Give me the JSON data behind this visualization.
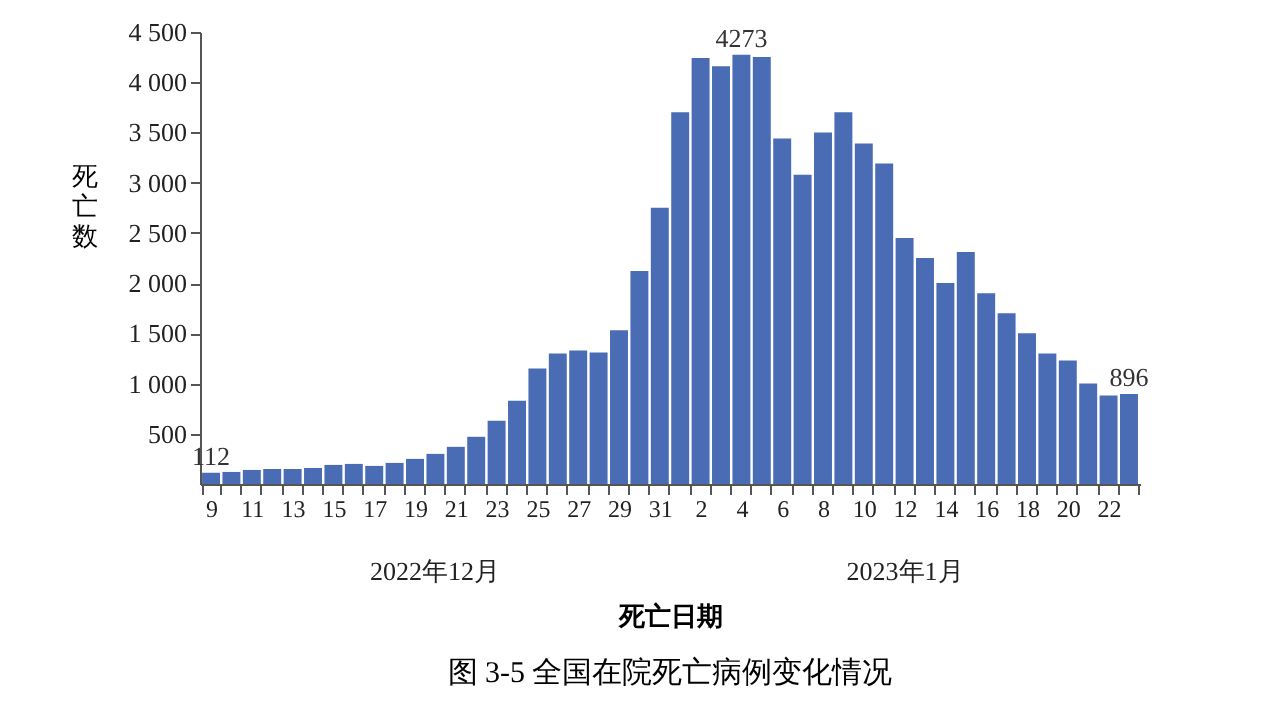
{
  "chart_data": {
    "type": "bar",
    "title": "图 3-5 全国在院死亡病例变化情况",
    "xlabel": "死亡日期",
    "ylabel": "死亡数",
    "categories": [
      "9",
      null,
      "11",
      null,
      "13",
      null,
      "15",
      null,
      "17",
      null,
      "19",
      null,
      "21",
      null,
      "23",
      null,
      "25",
      null,
      "27",
      null,
      "29",
      null,
      "31",
      null,
      "2",
      null,
      "4",
      null,
      "6",
      null,
      "8",
      null,
      "10",
      null,
      "12",
      null,
      "14",
      null,
      "16",
      null,
      "18",
      null,
      "20",
      null,
      "22",
      null
    ],
    "values": [
      112,
      120,
      140,
      150,
      150,
      160,
      190,
      200,
      180,
      210,
      250,
      300,
      370,
      470,
      630,
      830,
      1150,
      1300,
      1330,
      1310,
      1530,
      2120,
      2750,
      3700,
      4240,
      4160,
      4273,
      4250,
      3440,
      3080,
      3500,
      3700,
      3390,
      3190,
      2450,
      2250,
      2000,
      2310,
      1900,
      1700,
      1500,
      1300,
      1230,
      1000,
      880,
      896
    ],
    "value_labels": [
      "112",
      null,
      null,
      null,
      null,
      null,
      null,
      null,
      null,
      null,
      null,
      null,
      null,
      null,
      null,
      null,
      null,
      null,
      null,
      null,
      null,
      null,
      null,
      null,
      null,
      null,
      "4273",
      null,
      null,
      null,
      null,
      null,
      null,
      null,
      null,
      null,
      null,
      null,
      null,
      null,
      null,
      null,
      null,
      null,
      null,
      "896"
    ],
    "color": "#4a6cb5",
    "ylim": [
      0,
      4500
    ],
    "yticks": [
      {
        "value": 500,
        "label": "500"
      },
      {
        "value": 1000,
        "label": "1 000"
      },
      {
        "value": 1500,
        "label": "1 500"
      },
      {
        "value": 2000,
        "label": "2 000"
      },
      {
        "value": 2500,
        "label": "2 500"
      },
      {
        "value": 3000,
        "label": "3 000"
      },
      {
        "value": 3500,
        "label": "3 500"
      },
      {
        "value": 4000,
        "label": "4 000"
      },
      {
        "value": 4500,
        "label": "4 500"
      }
    ],
    "annotations": [
      "2022年12月",
      "2023年1月"
    ],
    "grid": false
  }
}
